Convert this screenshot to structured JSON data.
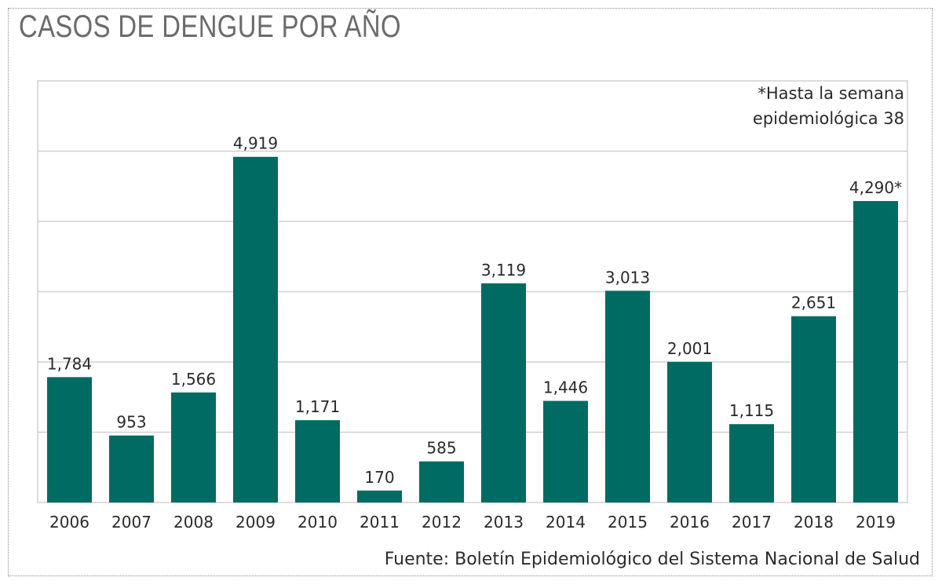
{
  "title": "CASOS DE DENGUE POR AÑO",
  "source": "Fuente: Boletín Epidemiológico del Sistema Nacional de Salud",
  "note": [
    "*Hasta la semana",
    "epidemiológica 38"
  ],
  "colors": {
    "bar": "#006b62",
    "grid": "#d0d0d0",
    "title": "#6b6b6b"
  },
  "chart_data": {
    "type": "bar",
    "title": "CASOS DE DENGUE POR AÑO",
    "xlabel": "",
    "ylabel": "",
    "categories": [
      "2006",
      "2007",
      "2008",
      "2009",
      "2010",
      "2011",
      "2012",
      "2013",
      "2014",
      "2015",
      "2016",
      "2017",
      "2018",
      "2019"
    ],
    "values": [
      1784,
      953,
      1566,
      4919,
      1171,
      170,
      585,
      3119,
      1446,
      3013,
      2001,
      1115,
      2651,
      4290
    ],
    "data_labels": [
      "1,784",
      "953",
      "1,566",
      "4,919",
      "1,171",
      "170",
      "585",
      "3,119",
      "1,446",
      "3,013",
      "2,001",
      "1,115",
      "2,651",
      "4,290*"
    ],
    "ylim": [
      0,
      6000
    ],
    "gridlines": [
      1000,
      2000,
      3000,
      4000,
      5000
    ],
    "grid": true,
    "legend": "none"
  }
}
